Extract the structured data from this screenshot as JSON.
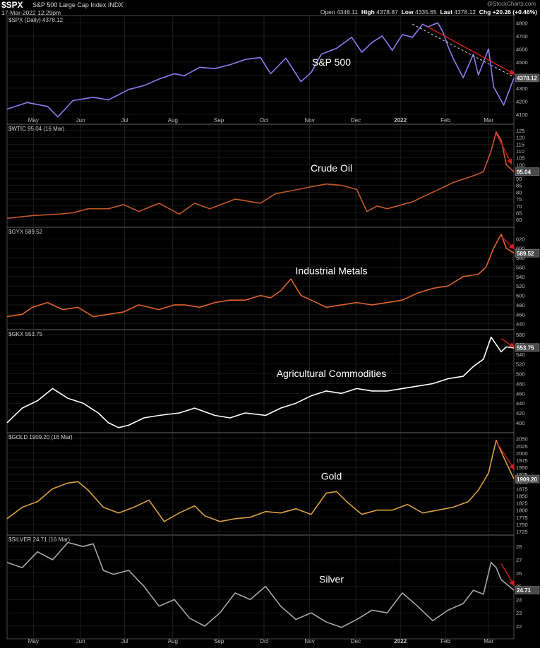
{
  "header": {
    "symbol": "$SPX",
    "name": "S&P 500 Large Cap Index  INDX",
    "date": "17-Mar-2022 12:29pm",
    "watermark": "@StockCharts.com",
    "open_label": "Open",
    "open": "4346.11",
    "high_label": "High",
    "high": "4378.87",
    "low_label": "Low",
    "low": "4335.65",
    "last_label": "Last",
    "last": "4378.12",
    "chg_label": "Chg",
    "chg": "+20.26 (+0.46%)"
  },
  "x_axis_labels": [
    "May",
    "Jun",
    "Jul",
    "Aug",
    "Sep",
    "Oct",
    "Nov",
    "Dec",
    "2022",
    "Feb",
    "Mar"
  ],
  "colors": {
    "spx": "#8c7cf0",
    "wtic": "#c4582a",
    "gyx": "#e0642a",
    "gkx": "#ffffff",
    "gold": "#d9a040",
    "silver": "#a8a8a8",
    "arrow": "#d21e1e",
    "grid": "#242424",
    "divider": "#7a7a7a"
  },
  "chart_data": [
    {
      "type": "line",
      "symbol": "$SPX",
      "legend": "$SPX (Daily) 4378.12",
      "title": "S&P 500",
      "color": "#8c7cf0",
      "ylim": [
        4040,
        4840
      ],
      "yticks": [
        4100,
        4200,
        4300,
        4400,
        4500,
        4600,
        4700,
        4800
      ],
      "last_label": "4378.12",
      "last_value": 4378.12,
      "x": [
        0,
        0.04,
        0.08,
        0.1,
        0.13,
        0.17,
        0.2,
        0.24,
        0.27,
        0.3,
        0.33,
        0.35,
        0.38,
        0.41,
        0.44,
        0.47,
        0.5,
        0.52,
        0.55,
        0.58,
        0.6,
        0.62,
        0.65,
        0.68,
        0.7,
        0.72,
        0.74,
        0.76,
        0.78,
        0.8,
        0.82,
        0.83,
        0.85,
        0.86,
        0.87,
        0.88,
        0.9,
        0.92,
        0.93,
        0.95,
        0.96,
        0.97,
        0.98,
        1.0
      ],
      "values": [
        4140,
        4190,
        4160,
        4080,
        4205,
        4230,
        4210,
        4290,
        4320,
        4370,
        4410,
        4395,
        4460,
        4450,
        4480,
        4520,
        4535,
        4410,
        4530,
        4350,
        4420,
        4560,
        4605,
        4690,
        4575,
        4650,
        4700,
        4590,
        4710,
        4690,
        4790,
        4770,
        4800,
        4730,
        4620,
        4530,
        4380,
        4560,
        4400,
        4600,
        4310,
        4240,
        4170,
        4378
      ],
      "trendline": {
        "from": [
          0.8,
          4790
        ],
        "to": [
          1.0,
          4385
        ]
      },
      "arrow": {
        "from": [
          0.83,
          4770
        ],
        "to": [
          1.0,
          4410
        ]
      }
    },
    {
      "type": "line",
      "symbol": "$WTIC",
      "legend": "$WTIC 95.04 (16 Mar)",
      "title": "Crude Oil",
      "color": "#c4582a",
      "ylim": [
        56,
        128
      ],
      "yticks": [
        60,
        65,
        70,
        75,
        80,
        85,
        90,
        95,
        100,
        105,
        110,
        115,
        120,
        125
      ],
      "last_label": "95.04",
      "last_value": 95.04,
      "x": [
        0,
        0.05,
        0.1,
        0.13,
        0.16,
        0.2,
        0.23,
        0.26,
        0.3,
        0.34,
        0.37,
        0.4,
        0.45,
        0.5,
        0.53,
        0.56,
        0.6,
        0.63,
        0.66,
        0.69,
        0.71,
        0.73,
        0.75,
        0.77,
        0.8,
        0.84,
        0.88,
        0.92,
        0.94,
        0.955,
        0.965,
        0.975,
        0.985,
        1.0
      ],
      "values": [
        61,
        63,
        64,
        65,
        68,
        68,
        71,
        66,
        72,
        64,
        72,
        68,
        75,
        72,
        79,
        81,
        84,
        86,
        85,
        82,
        66,
        70,
        68,
        70,
        73,
        80,
        87,
        92,
        95,
        110,
        124,
        118,
        100,
        95
      ],
      "arrow": {
        "from": [
          0.965,
          123
        ],
        "to": [
          0.995,
          101
        ]
      }
    },
    {
      "type": "line",
      "symbol": "$GYX",
      "legend": "$GYX 589.52",
      "title": "Industrial Metals",
      "color": "#e0642a",
      "ylim": [
        432,
        640
      ],
      "yticks": [
        440,
        460,
        480,
        500,
        520,
        540,
        560,
        580,
        600,
        620
      ],
      "last_label": "589.52",
      "last_value": 589.52,
      "x": [
        0,
        0.03,
        0.05,
        0.08,
        0.11,
        0.14,
        0.17,
        0.2,
        0.23,
        0.26,
        0.3,
        0.33,
        0.35,
        0.38,
        0.41,
        0.44,
        0.47,
        0.5,
        0.52,
        0.54,
        0.56,
        0.58,
        0.6,
        0.63,
        0.66,
        0.69,
        0.72,
        0.75,
        0.78,
        0.81,
        0.84,
        0.87,
        0.9,
        0.93,
        0.945,
        0.96,
        0.975,
        0.985,
        1.0
      ],
      "values": [
        455,
        460,
        475,
        485,
        470,
        475,
        455,
        460,
        465,
        480,
        470,
        480,
        480,
        475,
        485,
        490,
        490,
        500,
        495,
        510,
        535,
        500,
        490,
        475,
        480,
        485,
        480,
        485,
        490,
        505,
        515,
        520,
        540,
        545,
        560,
        600,
        630,
        600,
        590
      ],
      "arrow": {
        "from": [
          0.975,
          625
        ],
        "to": [
          1.0,
          600
        ]
      }
    },
    {
      "type": "line",
      "symbol": "$GKX",
      "legend": "$GKX 553.75",
      "title": "Agricultural Commodities",
      "color": "#ffffff",
      "ylim": [
        384,
        586
      ],
      "yticks": [
        400,
        420,
        440,
        460,
        480,
        500,
        520,
        540,
        560,
        580
      ],
      "last_label": "553.75",
      "last_value": 553.75,
      "x": [
        0,
        0.03,
        0.06,
        0.09,
        0.12,
        0.15,
        0.18,
        0.2,
        0.22,
        0.24,
        0.27,
        0.3,
        0.34,
        0.37,
        0.41,
        0.44,
        0.47,
        0.51,
        0.54,
        0.57,
        0.6,
        0.63,
        0.66,
        0.69,
        0.72,
        0.75,
        0.78,
        0.81,
        0.84,
        0.87,
        0.9,
        0.92,
        0.94,
        0.955,
        0.965,
        0.975,
        0.985,
        1.0
      ],
      "values": [
        400,
        430,
        445,
        470,
        450,
        440,
        420,
        400,
        390,
        395,
        410,
        415,
        420,
        430,
        415,
        410,
        420,
        415,
        430,
        440,
        455,
        465,
        460,
        470,
        465,
        465,
        470,
        475,
        480,
        490,
        495,
        515,
        530,
        575,
        560,
        545,
        555,
        553
      ],
      "arrow": {
        "from": [
          0.975,
          572
        ],
        "to": [
          1.0,
          555
        ]
      }
    },
    {
      "type": "line",
      "symbol": "$GOLD",
      "legend": "$GOLD 1909.20 (16 Mar)",
      "title": "Gold",
      "color": "#d9a040",
      "ylim": [
        1720,
        2064
      ],
      "yticks": [
        1725,
        1750,
        1775,
        1800,
        1825,
        1850,
        1875,
        1900,
        1925,
        1950,
        1975,
        2000,
        2025,
        2050
      ],
      "last_label": "1909.20",
      "last_value": 1909.2,
      "x": [
        0,
        0.03,
        0.06,
        0.09,
        0.12,
        0.14,
        0.16,
        0.19,
        0.22,
        0.25,
        0.28,
        0.31,
        0.34,
        0.37,
        0.39,
        0.42,
        0.45,
        0.48,
        0.51,
        0.54,
        0.57,
        0.6,
        0.63,
        0.65,
        0.67,
        0.7,
        0.73,
        0.76,
        0.79,
        0.82,
        0.85,
        0.88,
        0.91,
        0.93,
        0.95,
        0.965,
        0.98,
        1.0
      ],
      "values": [
        1770,
        1810,
        1830,
        1875,
        1895,
        1900,
        1870,
        1810,
        1790,
        1810,
        1835,
        1760,
        1790,
        1815,
        1780,
        1760,
        1770,
        1775,
        1795,
        1790,
        1805,
        1785,
        1860,
        1865,
        1830,
        1785,
        1800,
        1800,
        1820,
        1790,
        1800,
        1810,
        1830,
        1870,
        1930,
        2045,
        1985,
        1909
      ],
      "arrow": {
        "from": [
          0.965,
          2040
        ],
        "to": [
          1.0,
          1945
        ]
      }
    },
    {
      "type": "line",
      "symbol": "$SILVER",
      "legend": "$SILVER 24.71 (16 Mar)",
      "title": "Silver",
      "color": "#a8a8a8",
      "ylim": [
        21.2,
        28.7
      ],
      "yticks": [
        22,
        23,
        24,
        25,
        26,
        27,
        28
      ],
      "last_label": "24.71",
      "last_value": 24.71,
      "x": [
        0,
        0.03,
        0.06,
        0.09,
        0.12,
        0.15,
        0.17,
        0.19,
        0.21,
        0.24,
        0.27,
        0.3,
        0.33,
        0.36,
        0.39,
        0.42,
        0.45,
        0.48,
        0.51,
        0.54,
        0.57,
        0.6,
        0.63,
        0.66,
        0.69,
        0.72,
        0.75,
        0.78,
        0.81,
        0.84,
        0.87,
        0.9,
        0.92,
        0.94,
        0.955,
        0.965,
        0.975,
        1.0
      ],
      "values": [
        26.8,
        26.4,
        27.6,
        27.0,
        28.3,
        28.0,
        28.2,
        26.2,
        25.9,
        26.2,
        25.0,
        23.5,
        24.0,
        22.6,
        22.0,
        23.0,
        24.5,
        24.0,
        25.0,
        23.5,
        22.5,
        23.0,
        22.3,
        21.9,
        22.5,
        23.2,
        23.0,
        24.5,
        23.5,
        22.4,
        23.2,
        23.7,
        24.7,
        24.4,
        26.8,
        26.4,
        25.5,
        24.7
      ],
      "arrow": {
        "from": [
          0.975,
          26.7
        ],
        "to": [
          1.0,
          25.1
        ]
      }
    }
  ]
}
